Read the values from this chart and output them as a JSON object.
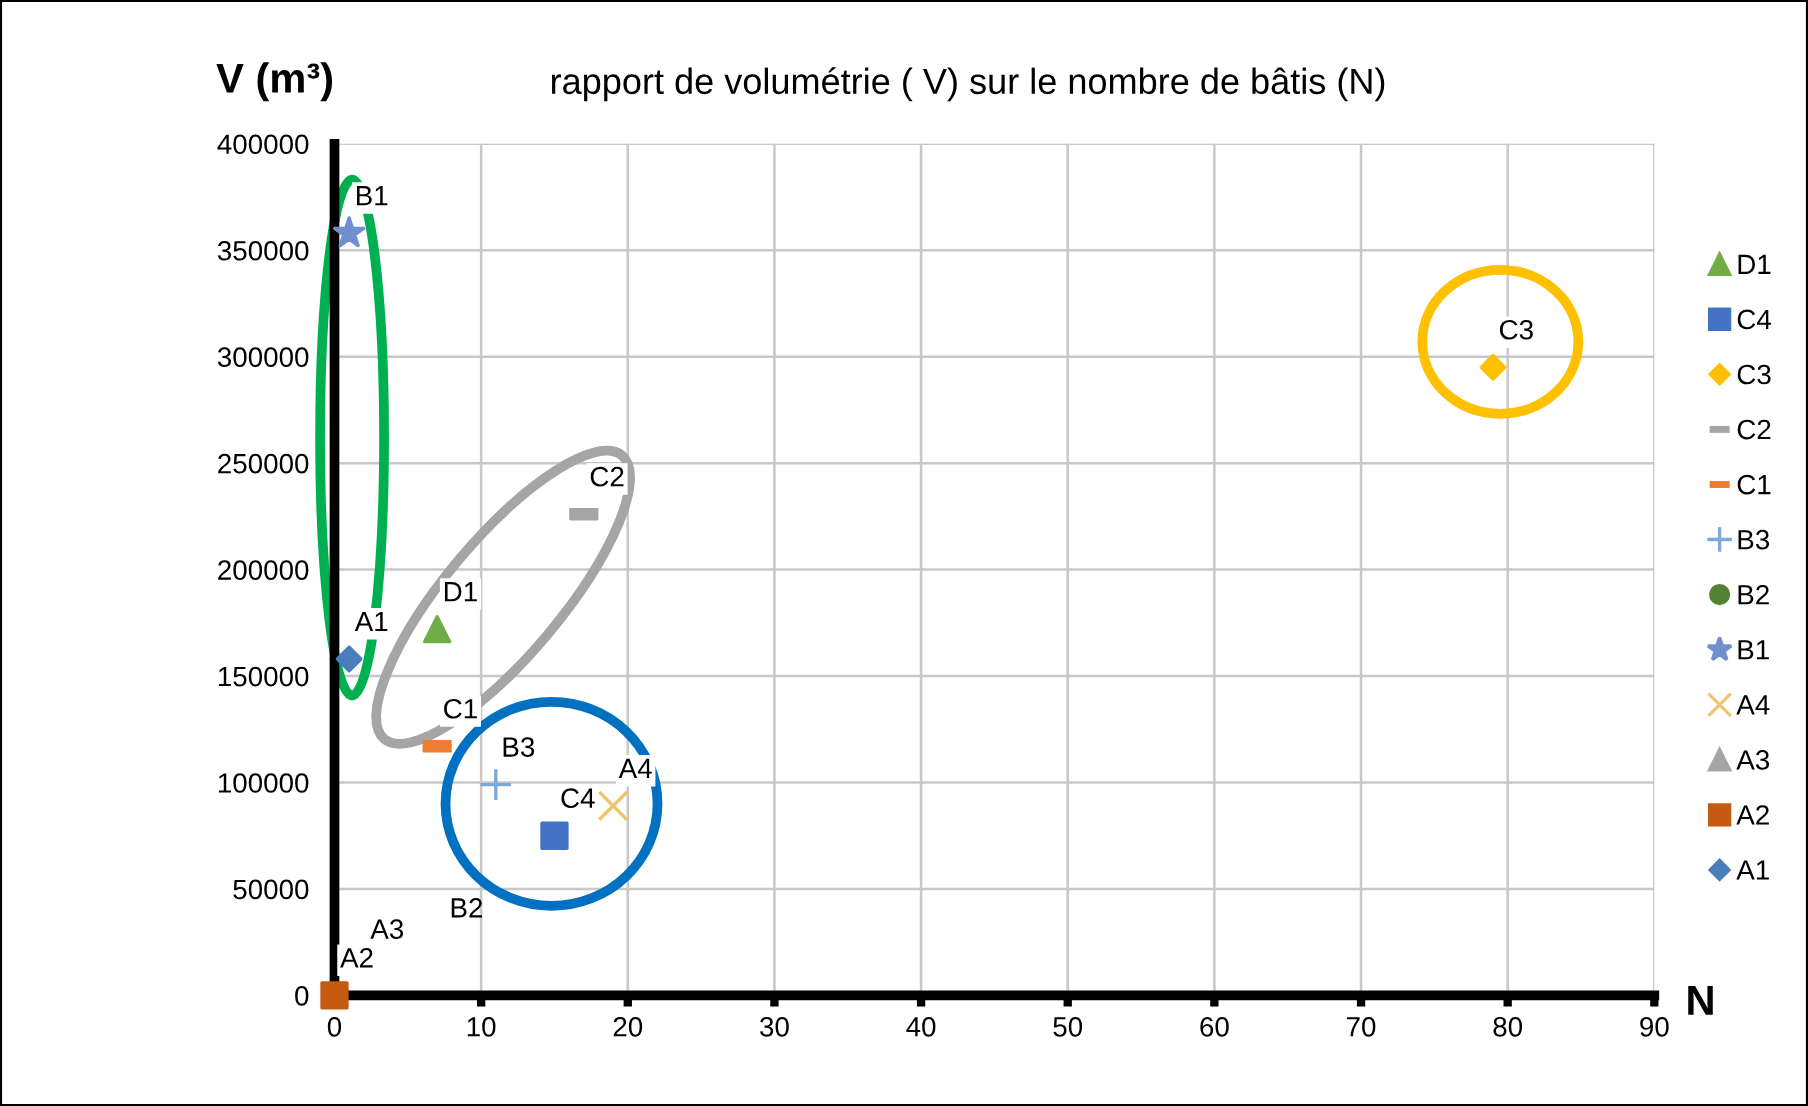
{
  "chart_data": {
    "type": "scatter",
    "title": "rapport de volumétrie ( V) sur le nombre de bâtis (N)",
    "xlabel": "N",
    "ylabel": "V (m³)",
    "xlim": [
      0,
      90
    ],
    "xticks": [
      0,
      10,
      20,
      30,
      40,
      50,
      60,
      70,
      80,
      90
    ],
    "ylim": [
      0,
      400000
    ],
    "yticks": [
      0,
      50000,
      100000,
      150000,
      200000,
      250000,
      300000,
      350000,
      400000
    ],
    "grid": true,
    "legend": "right",
    "series": [
      {
        "name": "A1",
        "color": "#4a7ebb",
        "marker": "diamond",
        "x": [
          1
        ],
        "values": [
          158000
        ]
      },
      {
        "name": "A2",
        "color": "#c55a11",
        "marker": "square",
        "x": [
          0
        ],
        "values": [
          0
        ]
      },
      {
        "name": "A3",
        "color": "#a5a5a5",
        "marker": "triangle",
        "values": [
          null
        ]
      },
      {
        "name": "A4",
        "color": "#f2c46d",
        "marker": "cross",
        "x": [
          19
        ],
        "values": [
          89000
        ]
      },
      {
        "name": "B1",
        "color": "#6f8fcf",
        "marker": "star",
        "x": [
          1
        ],
        "values": [
          358000
        ]
      },
      {
        "name": "B2",
        "color": "#548235",
        "marker": "circle",
        "values": [
          null
        ]
      },
      {
        "name": "B3",
        "color": "#7fa7dc",
        "marker": "plus",
        "x": [
          11
        ],
        "values": [
          99000
        ]
      },
      {
        "name": "C1",
        "color": "#ed7d31",
        "x": [
          7
        ],
        "values": [
          117000
        ]
      },
      {
        "name": "C2",
        "color": "#a5a5a5",
        "x": [
          17
        ],
        "values": [
          226000
        ]
      },
      {
        "name": "C3",
        "color": "#ffc000",
        "marker": "diamond",
        "x": [
          79
        ],
        "values": [
          295000
        ]
      },
      {
        "name": "C4",
        "color": "#4472c4",
        "marker": "square",
        "x": [
          15
        ],
        "values": [
          75000
        ]
      },
      {
        "name": "D1",
        "color": "#70ad47",
        "marker": "triangle",
        "x": [
          7
        ],
        "values": [
          172000
        ]
      }
    ],
    "annotations": [
      "A3",
      "B2"
    ]
  }
}
